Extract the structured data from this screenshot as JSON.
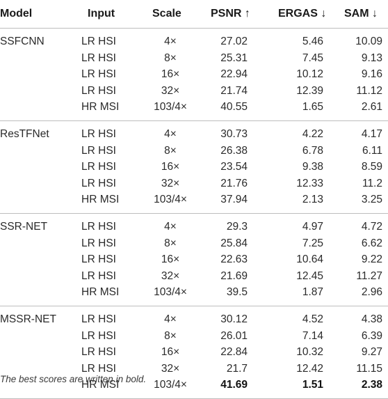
{
  "headers": {
    "model": "Model",
    "input": "Input",
    "scale": "Scale",
    "psnr": "PSNR ↑",
    "ergas": "ERGAS ↓",
    "sam": "SAM ↓"
  },
  "groups": [
    {
      "model": "SSFCNN",
      "rows": [
        {
          "input": "LR HSI",
          "scale": "4×",
          "psnr": "27.02",
          "ergas": "5.46",
          "sam": "10.09"
        },
        {
          "input": "LR HSI",
          "scale": "8×",
          "psnr": "25.31",
          "ergas": "7.45",
          "sam": "9.13"
        },
        {
          "input": "LR HSI",
          "scale": "16×",
          "psnr": "22.94",
          "ergas": "10.12",
          "sam": "9.16"
        },
        {
          "input": "LR HSI",
          "scale": "32×",
          "psnr": "21.74",
          "ergas": "12.39",
          "sam": "11.12"
        },
        {
          "input": "HR MSI",
          "scale": "103/4×",
          "psnr": "40.55",
          "ergas": "1.65",
          "sam": "2.61"
        }
      ]
    },
    {
      "model": "ResTFNet",
      "rows": [
        {
          "input": "LR HSI",
          "scale": "4×",
          "psnr": "30.73",
          "ergas": "4.22",
          "sam": "4.17"
        },
        {
          "input": "LR HSI",
          "scale": "8×",
          "psnr": "26.38",
          "ergas": "6.78",
          "sam": "6.11"
        },
        {
          "input": "LR HSI",
          "scale": "16×",
          "psnr": "23.54",
          "ergas": "9.38",
          "sam": "8.59"
        },
        {
          "input": "LR HSI",
          "scale": "32×",
          "psnr": "21.76",
          "ergas": "12.33",
          "sam": "11.2"
        },
        {
          "input": "HR MSI",
          "scale": "103/4×",
          "psnr": "37.94",
          "ergas": "2.13",
          "sam": "3.25"
        }
      ]
    },
    {
      "model": "SSR-NET",
      "rows": [
        {
          "input": "LR HSI",
          "scale": "4×",
          "psnr": "29.3",
          "ergas": "4.97",
          "sam": "4.72"
        },
        {
          "input": "LR HSI",
          "scale": "8×",
          "psnr": "25.84",
          "ergas": "7.25",
          "sam": "6.62"
        },
        {
          "input": "LR HSI",
          "scale": "16×",
          "psnr": "22.63",
          "ergas": "10.64",
          "sam": "9.22"
        },
        {
          "input": "LR HSI",
          "scale": "32×",
          "psnr": "21.69",
          "ergas": "12.45",
          "sam": "11.27"
        },
        {
          "input": "HR MSI",
          "scale": "103/4×",
          "psnr": "39.5",
          "ergas": "1.87",
          "sam": "2.96"
        }
      ]
    },
    {
      "model": "MSSR-NET",
      "rows": [
        {
          "input": "LR HSI",
          "scale": "4×",
          "psnr": "30.12",
          "ergas": "4.52",
          "sam": "4.38"
        },
        {
          "input": "LR HSI",
          "scale": "8×",
          "psnr": "26.01",
          "ergas": "7.14",
          "sam": "6.39"
        },
        {
          "input": "LR HSI",
          "scale": "16×",
          "psnr": "22.84",
          "ergas": "10.32",
          "sam": "9.27"
        },
        {
          "input": "LR HSI",
          "scale": "32×",
          "psnr": "21.7",
          "ergas": "12.42",
          "sam": "11.15"
        },
        {
          "input": "HR MSI",
          "scale": "103/4×",
          "psnr": "41.69",
          "ergas": "1.51",
          "sam": "2.38",
          "bold": true
        }
      ]
    }
  ],
  "footnote": "The best scores are written in bold."
}
